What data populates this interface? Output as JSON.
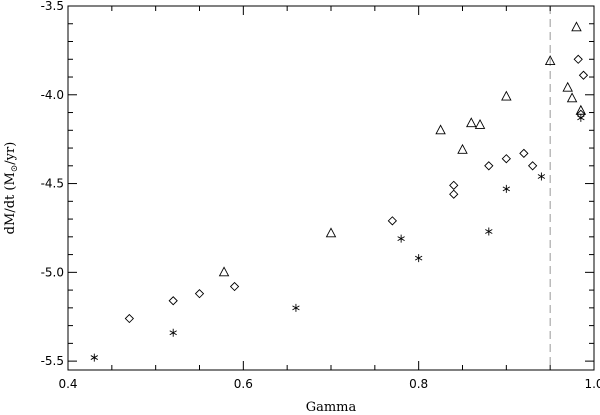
{
  "chart_data": {
    "type": "scatter",
    "xlabel": "Gamma",
    "ylabel": "dM/dt (M⊙/yr)",
    "ylabel_main": "dM/dt (M",
    "ylabel_sub": "⊙",
    "ylabel_end": "/yr)",
    "xlim": [
      0.4,
      1.0
    ],
    "ylim": [
      -5.55,
      -3.5
    ],
    "x_ticks": [
      0.4,
      0.6,
      0.8,
      1.0
    ],
    "x_tick_labels": [
      "0.4",
      "0.6",
      "0.8",
      "1.0"
    ],
    "y_ticks": [
      -5.5,
      -5.0,
      -4.5,
      -4.0,
      -3.5
    ],
    "y_tick_labels": [
      "-5.5",
      "-5.0",
      "-4.5",
      "-4.0",
      "-3.5"
    ],
    "x_minor_step": 0.05,
    "y_minor_step": 0.1,
    "grid": false,
    "reference_lines": [
      {
        "orientation": "vertical",
        "x": 0.95,
        "style": "dashed",
        "color": "#999999"
      }
    ],
    "series": [
      {
        "marker": "triangle",
        "points": [
          [
            0.578,
            -5.0
          ],
          [
            0.7,
            -4.78
          ],
          [
            0.825,
            -4.2
          ],
          [
            0.85,
            -4.31
          ],
          [
            0.86,
            -4.16
          ],
          [
            0.87,
            -4.17
          ],
          [
            0.9,
            -4.01
          ],
          [
            0.95,
            -3.81
          ],
          [
            0.97,
            -3.96
          ],
          [
            0.975,
            -4.02
          ],
          [
            0.98,
            -3.62
          ],
          [
            0.985,
            -4.09
          ]
        ]
      },
      {
        "marker": "diamond",
        "points": [
          [
            0.47,
            -5.26
          ],
          [
            0.52,
            -5.16
          ],
          [
            0.55,
            -5.12
          ],
          [
            0.59,
            -5.08
          ],
          [
            0.77,
            -4.71
          ],
          [
            0.84,
            -4.51
          ],
          [
            0.84,
            -4.56
          ],
          [
            0.88,
            -4.4
          ],
          [
            0.9,
            -4.36
          ],
          [
            0.92,
            -4.33
          ],
          [
            0.93,
            -4.4
          ],
          [
            0.982,
            -3.8
          ],
          [
            0.988,
            -3.89
          ],
          [
            0.985,
            -4.11
          ]
        ]
      },
      {
        "marker": "asterisk",
        "points": [
          [
            0.43,
            -5.48
          ],
          [
            0.52,
            -5.34
          ],
          [
            0.66,
            -5.2
          ],
          [
            0.78,
            -4.81
          ],
          [
            0.8,
            -4.92
          ],
          [
            0.88,
            -4.77
          ],
          [
            0.9,
            -4.53
          ],
          [
            0.94,
            -4.46
          ],
          [
            0.985,
            -4.13
          ]
        ]
      }
    ]
  }
}
